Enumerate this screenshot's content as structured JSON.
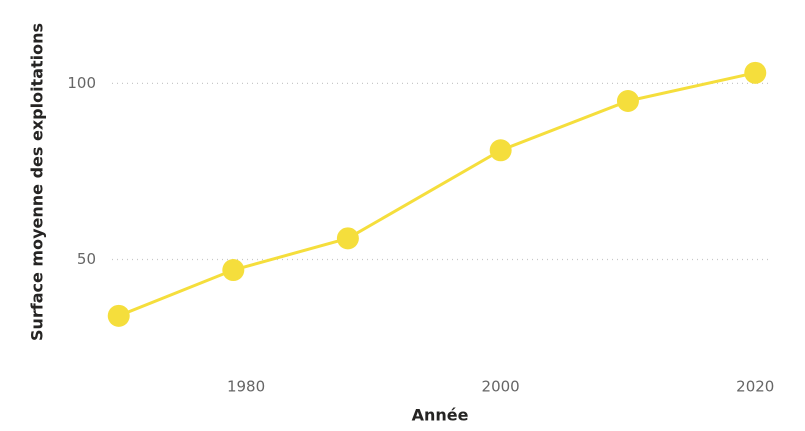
{
  "chart_data": {
    "type": "line",
    "x_label": "Année",
    "y_label": "Surface moyenne des exploitations",
    "x": [
      1970,
      1979,
      1988,
      2000,
      2010,
      2020
    ],
    "series": [
      {
        "name": "Surface moyenne des exploitations",
        "color": "#f5de3c",
        "values": [
          34,
          47,
          56,
          81,
          95,
          103
        ]
      }
    ],
    "xlim": [
      1969,
      2021
    ],
    "xticks": [
      1980,
      2000,
      2020
    ],
    "ylim": [
      26,
      118
    ],
    "yticks": [
      50,
      100
    ],
    "grid": true
  }
}
